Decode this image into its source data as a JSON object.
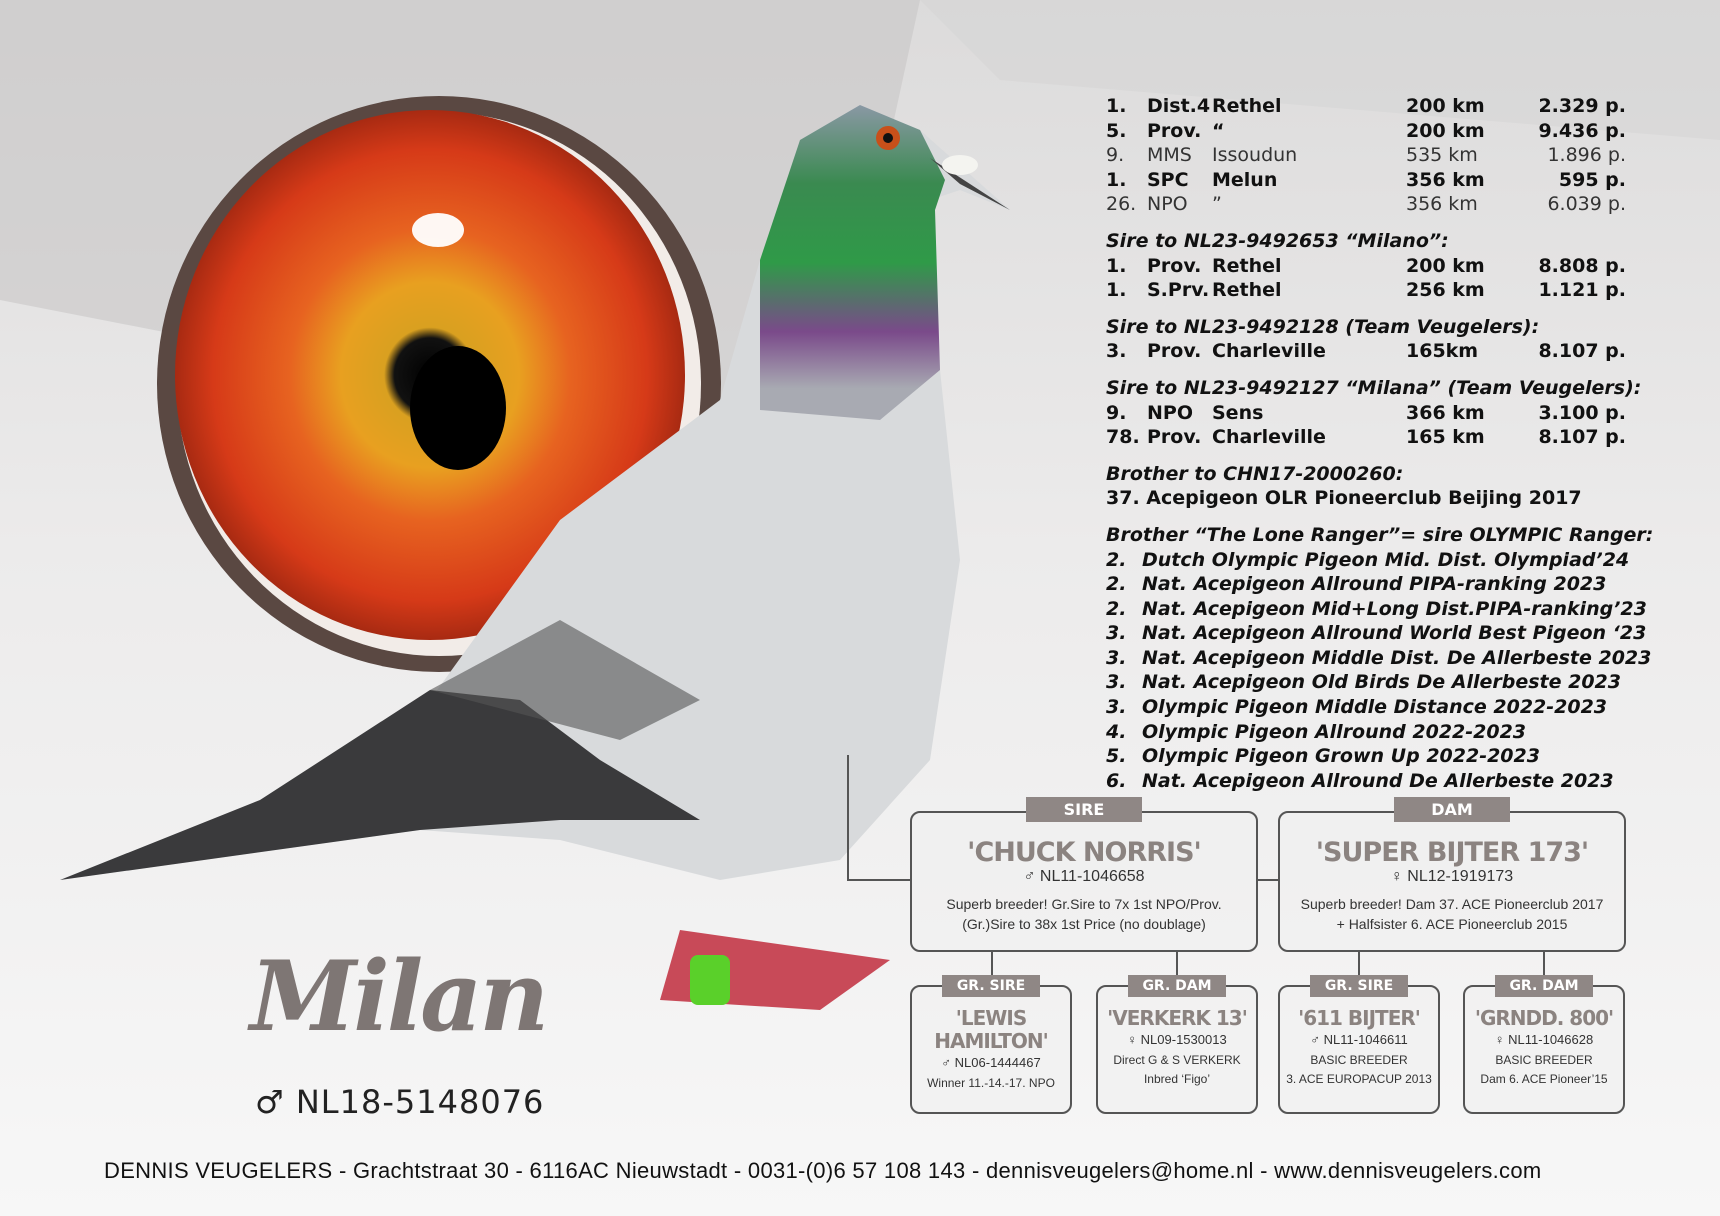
{
  "results": [
    {
      "place": "1.",
      "type": "Dist.4",
      "location": "Rethel",
      "distance": "200 km",
      "points": "2.329 p.",
      "bold": true
    },
    {
      "place": "5.",
      "type": "Prov.",
      "location": "“",
      "distance": "200 km",
      "points": "9.436 p.",
      "bold": true
    },
    {
      "place": "9.",
      "type": "MMS",
      "location": "Issoudun",
      "distance": "535 km",
      "points": "1.896 p.",
      "bold": false
    },
    {
      "place": "1.",
      "type": "SPC",
      "location": "Melun",
      "distance": "356 km",
      "points": "595 p.",
      "bold": true
    },
    {
      "place": "26.",
      "type": "NPO",
      "location": "”",
      "distance": "356 km",
      "points": "6.039 p.",
      "bold": false
    }
  ],
  "offspring": [
    {
      "heading": "Sire to NL23-9492653 “Milano”:",
      "rows": [
        {
          "place": "1.",
          "type": "Prov.",
          "location": "Rethel",
          "distance": "200 km",
          "points": "8.808 p."
        },
        {
          "place": "1.",
          "type": "S.Prv.",
          "location": "Rethel",
          "distance": "256 km",
          "points": "1.121 p."
        }
      ]
    },
    {
      "heading": "Sire to NL23-9492128 (Team Veugelers):",
      "rows": [
        {
          "place": "3.",
          "type": "Prov.",
          "location": "Charleville",
          "distance": "165km",
          "points": "8.107 p."
        }
      ]
    },
    {
      "heading": "Sire to NL23-9492127 “Milana” (Team Veugelers):",
      "rows": [
        {
          "place": "9.",
          "type": "NPO",
          "location": "Sens",
          "distance": "366 km",
          "points": "3.100 p."
        },
        {
          "place": "78.",
          "type": "Prov.",
          "location": "Charleville",
          "distance": "165 km",
          "points": "8.107 p."
        }
      ]
    }
  ],
  "brother1": {
    "heading": "Brother to CHN17-2000260:",
    "line": "37. Acepigeon OLR Pioneerclub Beijing 2017"
  },
  "brother2": {
    "heading": "Brother “The Lone Ranger”= sire OLYMPIC Ranger:",
    "items": [
      {
        "place": "2.",
        "text": "Dutch Olympic Pigeon Mid. Dist. Olympiad’24"
      },
      {
        "place": "2.",
        "text": "Nat. Acepigeon Allround PIPA-ranking 2023"
      },
      {
        "place": "2.",
        "text": "Nat. Acepigeon Mid+Long Dist.PIPA-ranking’23"
      },
      {
        "place": "3.",
        "text": "Nat. Acepigeon Allround World Best Pigeon ‘23"
      },
      {
        "place": "3.",
        "text": "Nat. Acepigeon Middle Dist. De Allerbeste 2023"
      },
      {
        "place": "3.",
        "text": "Nat. Acepigeon Old Birds De Allerbeste 2023"
      },
      {
        "place": "3.",
        "text": "Olympic Pigeon Middle Distance 2022-2023"
      },
      {
        "place": "4.",
        "text": "Olympic Pigeon Allround 2022-2023"
      },
      {
        "place": "5.",
        "text": "Olympic Pigeon Grown Up 2022-2023"
      },
      {
        "place": "6.",
        "text": "Nat. Acepigeon Allround De Allerbeste 2023"
      }
    ]
  },
  "pedigree": {
    "sire": {
      "tag": "SIRE",
      "name": "'CHUCK NORRIS'",
      "ring": "♂ NL11-1046658",
      "desc1": "Superb breeder! Gr.Sire to 7x 1st NPO/Prov.",
      "desc2": "(Gr.)Sire to 38x 1st Price (no doublage)"
    },
    "dam": {
      "tag": "DAM",
      "name": "'SUPER BIJTER 173'",
      "ring": "♀ NL12-1919173",
      "desc1": "Superb breeder! Dam 37. ACE Pioneerclub 2017",
      "desc2": "+ Halfsister 6. ACE Pioneerclub 2015"
    },
    "grand": [
      {
        "tag": "GR. SIRE",
        "name": "'LEWIS HAMILTON'",
        "ring": "♂ NL06-1444467",
        "desc1": "Winner 11.-14.-17. NPO",
        "desc2": ""
      },
      {
        "tag": "GR. DAM",
        "name": "'VERKERK 13'",
        "ring": "♀ NL09-1530013",
        "desc1": "Direct G & S VERKERK",
        "desc2": "Inbred ‘Figo’"
      },
      {
        "tag": "GR. SIRE",
        "name": "'611 BIJTER'",
        "ring": "♂ NL11-1046611",
        "desc1": "BASIC BREEDER",
        "desc2": "3. ACE EUROPACUP 2013"
      },
      {
        "tag": "GR. DAM",
        "name": "'GRNDD. 800'",
        "ring": "♀ NL11-1046628",
        "desc1": "BASIC BREEDER",
        "desc2": "Dam 6. ACE Pioneer’15"
      }
    ]
  },
  "pigeon": {
    "name": "Milan",
    "ring": "♂ NL18-5148076"
  },
  "footer": "DENNIS VEUGELERS - Grachtstraat 30 - 6116AC Nieuwstadt - 0031-(0)6 57 108 143 - dennisveugelers@home.nl - www.dennisveugelers.com",
  "colors": {
    "accent": "#8f8785",
    "eye": "#e0501a"
  }
}
